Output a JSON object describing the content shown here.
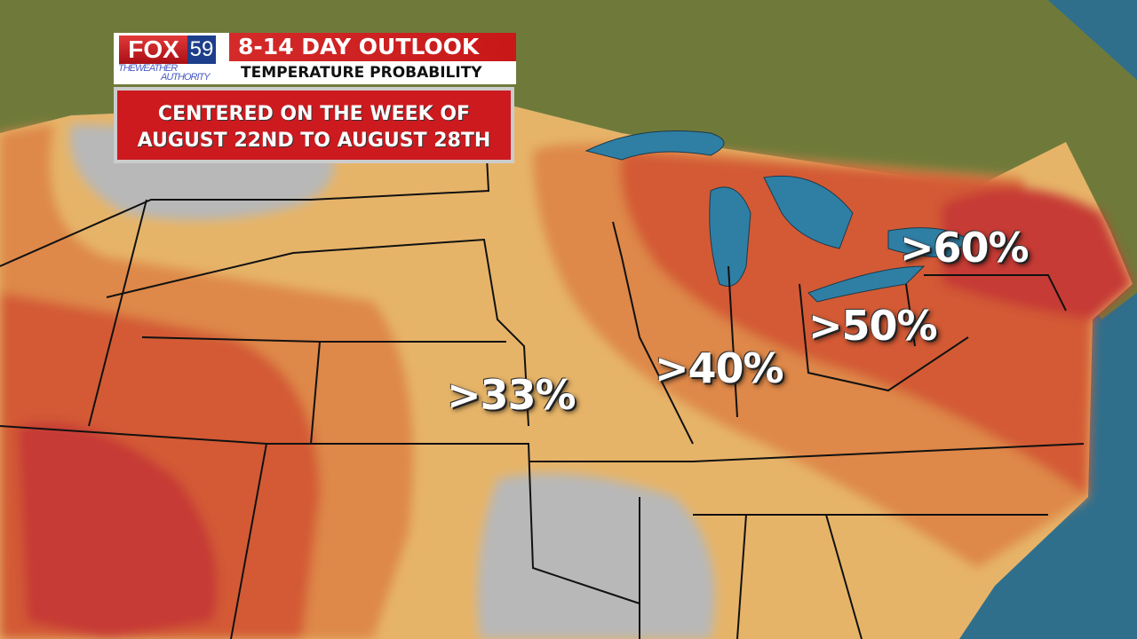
{
  "header": {
    "station_logo": "FOX 59",
    "station_logo_fox": "FOX",
    "station_logo_number": "59",
    "tagline_line1": "THEWEATHER",
    "tagline_line2": "AUTHORITY",
    "title": "8-14 DAY OUTLOOK",
    "subtitle": "TEMPERATURE PROBABILITY"
  },
  "banner": {
    "line1": "CENTERED ON THE WEEK OF",
    "line2": "AUGUST 22ND TO AUGUST 28TH"
  },
  "map": {
    "probability_labels": [
      ">33%",
      ">40%",
      ">50%",
      ">60%"
    ],
    "colors": {
      "above_33": "#e6b468",
      "above_40": "#de8848",
      "above_50": "#d35a36",
      "above_60": "#c63a36",
      "near_normal": "#b8b8b8",
      "water": "#2f6f8c",
      "land_canada": "#6f7a3a"
    }
  }
}
